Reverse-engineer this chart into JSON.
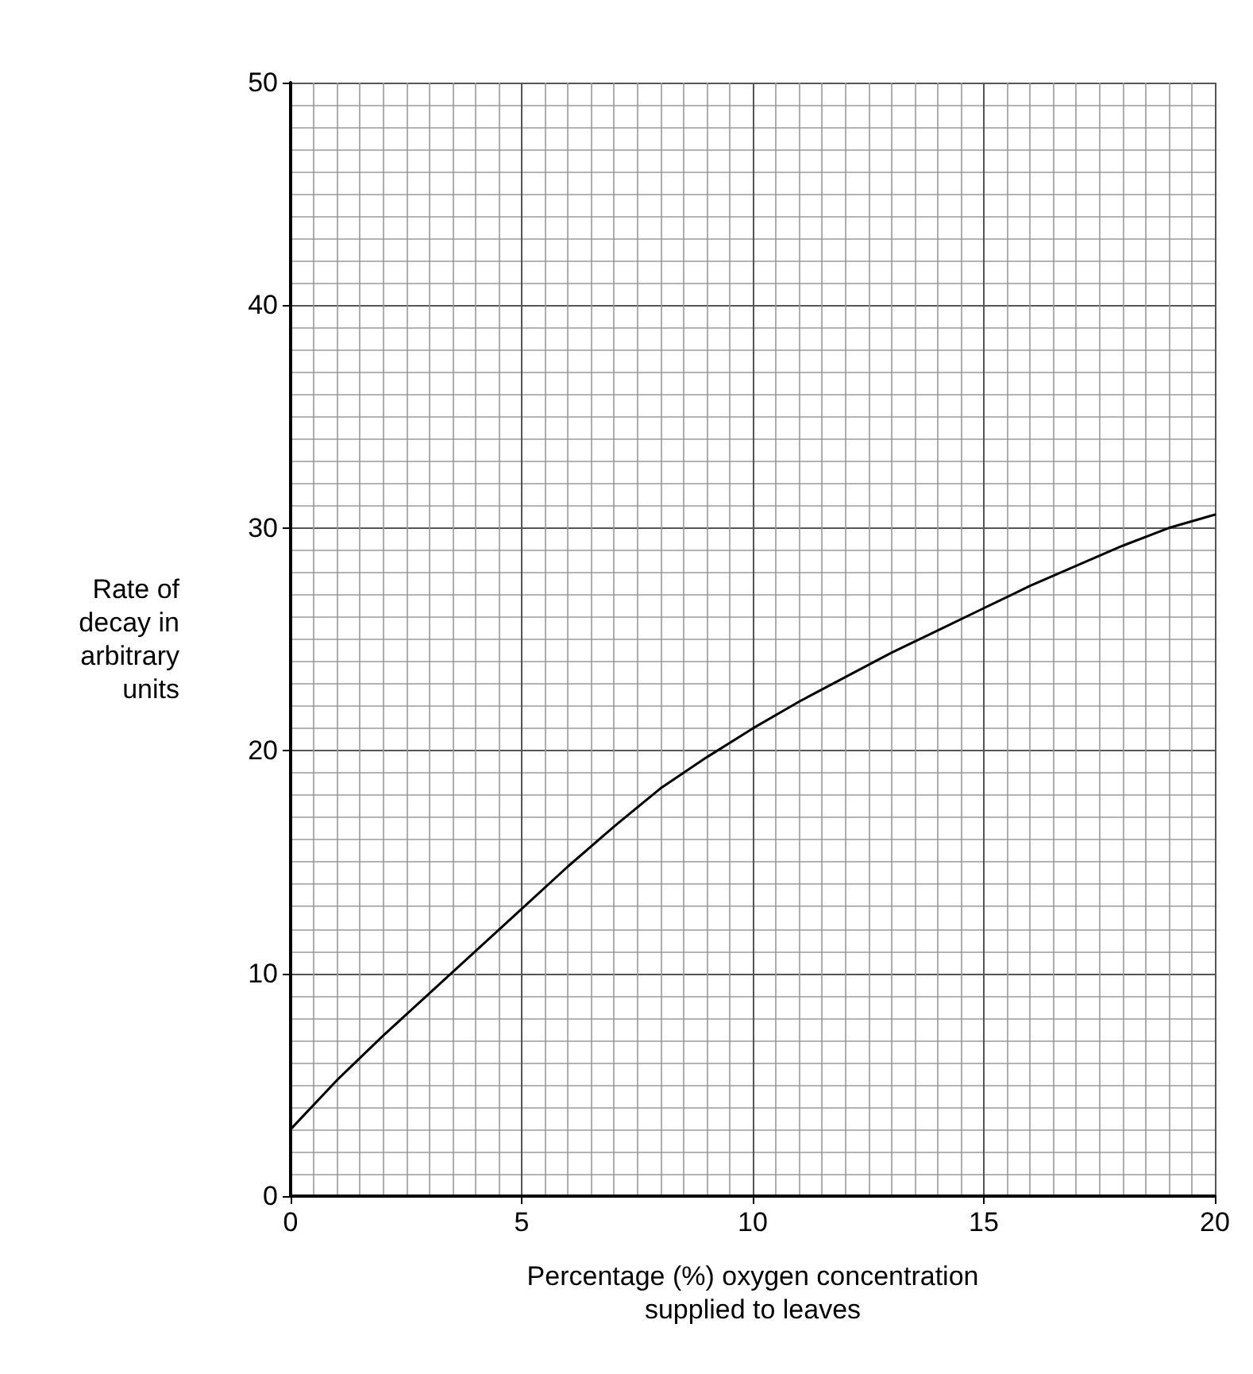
{
  "chart_data": {
    "type": "line",
    "xlabel": "Percentage (%) oxygen concentration\nsupplied to leaves",
    "ylabel": "Rate of\ndecay in\narbitrary\nunits",
    "x": [
      0,
      1,
      2,
      3,
      4,
      5,
      6,
      7,
      8,
      9,
      10,
      11,
      12,
      13,
      14,
      15,
      16,
      17,
      18,
      19,
      20
    ],
    "series": [
      {
        "color": "#000000",
        "values": [
          3,
          5.2,
          7.2,
          9.1,
          11,
          12.9,
          14.8,
          16.6,
          18.3,
          19.7,
          21,
          22.2,
          23.3,
          24.4,
          25.4,
          26.4,
          27.4,
          28.3,
          29.2,
          30,
          30.6
        ]
      }
    ],
    "xlim": [
      0,
      20
    ],
    "xticks": [
      0,
      5,
      10,
      15,
      20
    ],
    "ylim": [
      0,
      50
    ],
    "yticks": [
      0,
      10,
      20,
      30,
      40,
      50
    ],
    "grid": true,
    "marker": "none",
    "line_style": "solid"
  }
}
